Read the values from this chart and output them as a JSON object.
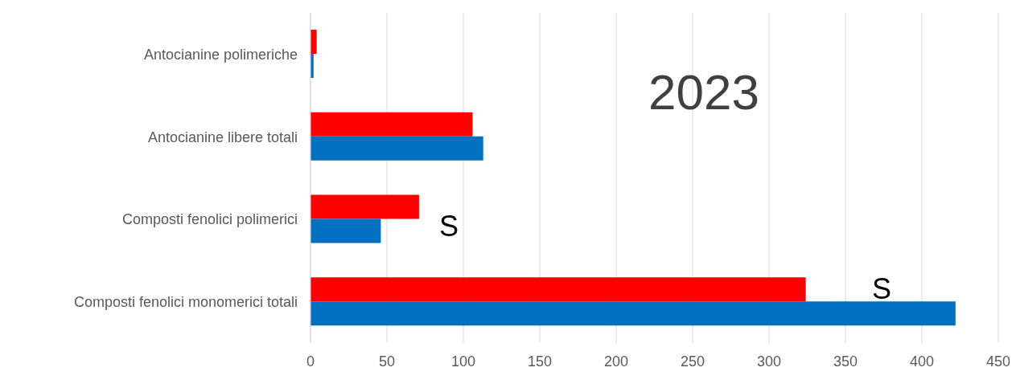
{
  "chart_data": {
    "type": "bar",
    "orientation": "horizontal",
    "categories": [
      "Antocianine polimeriche",
      "Antocianine libere totali",
      "Composti fenolici polimerici",
      "Composti fenolici monomerici totali"
    ],
    "series": [
      {
        "color": "#ff0000",
        "values": [
          4,
          106,
          71,
          324
        ]
      },
      {
        "color": "#0070c0",
        "values": [
          2,
          113,
          46,
          422
        ]
      }
    ],
    "xlim": [
      0,
      450
    ],
    "xticks": [
      0,
      50,
      100,
      150,
      200,
      250,
      300,
      350,
      400,
      450
    ],
    "grid": "x",
    "legend": false,
    "annotations": [
      "2023",
      "S",
      "S"
    ]
  }
}
